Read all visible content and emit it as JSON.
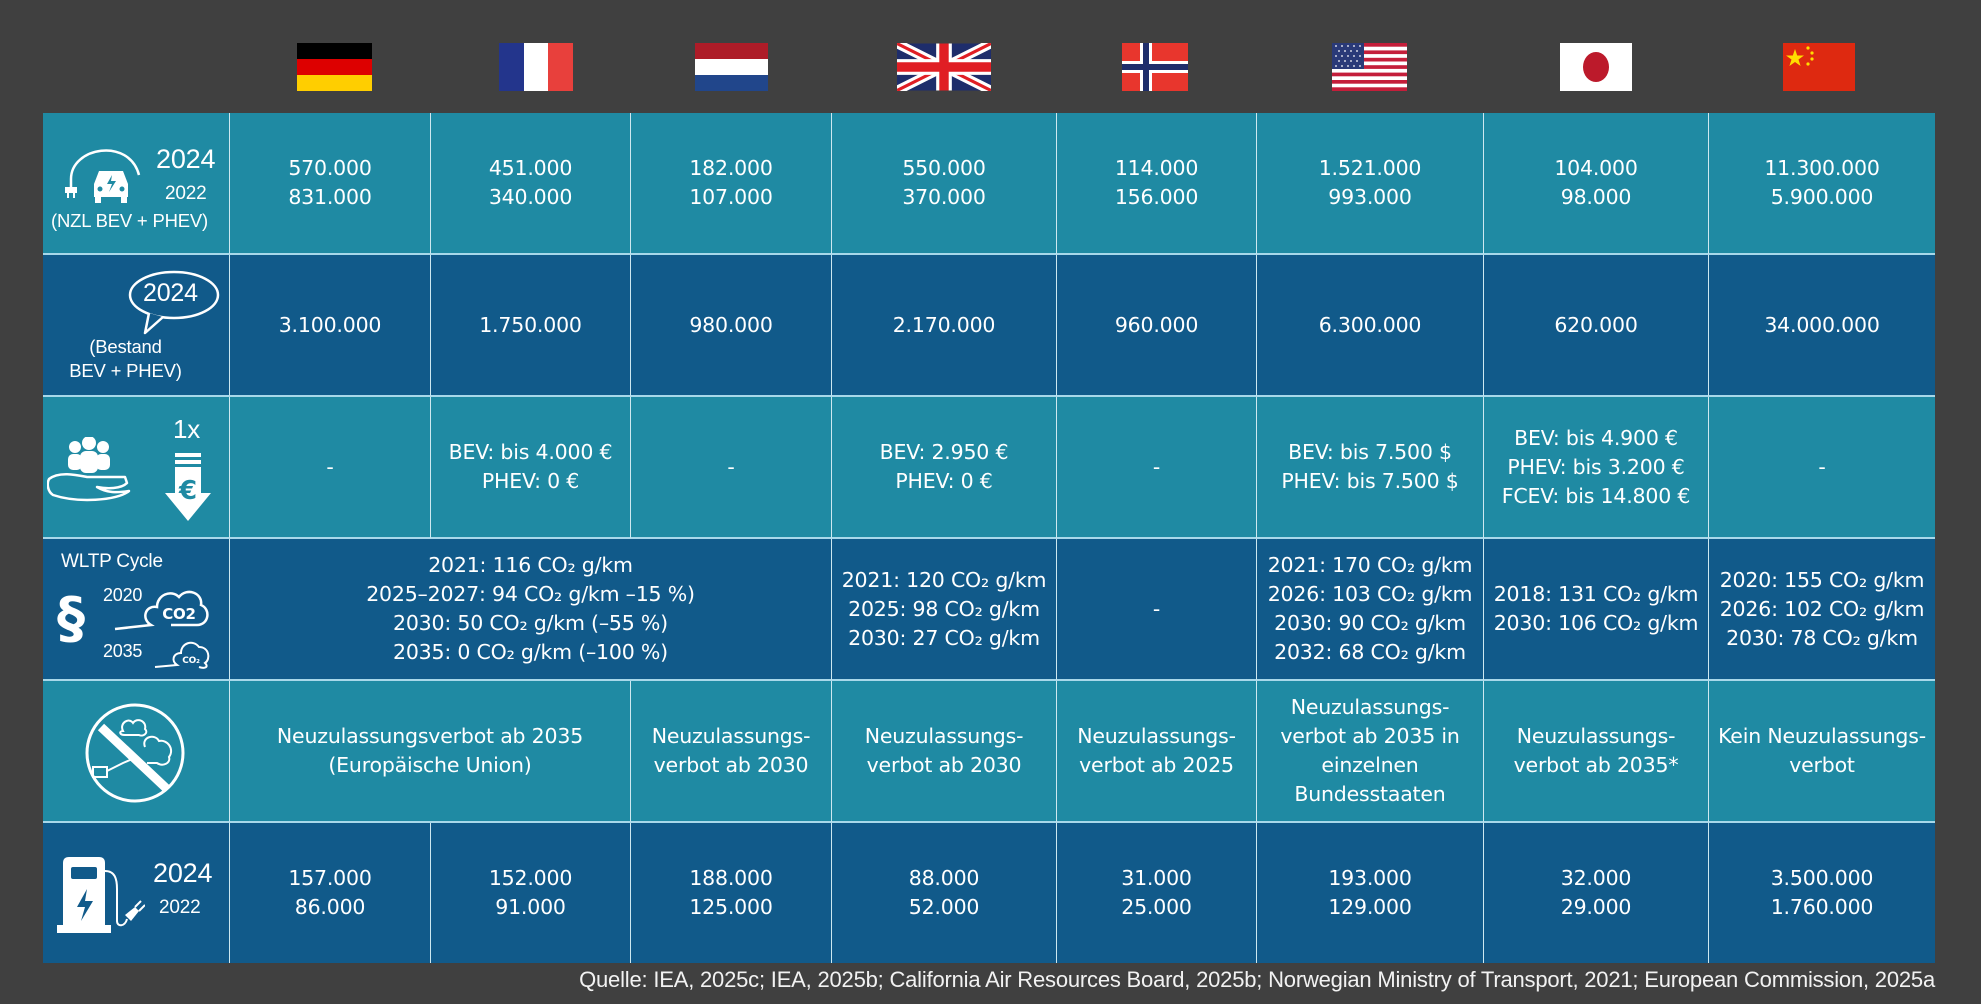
{
  "countries": [
    {
      "name": "Germany",
      "flag": "germany-flag"
    },
    {
      "name": "France",
      "flag": "france-flag"
    },
    {
      "name": "Netherlands",
      "flag": "netherlands-flag"
    },
    {
      "name": "United Kingdom",
      "flag": "uk-flag"
    },
    {
      "name": "Norway",
      "flag": "norway-flag"
    },
    {
      "name": "United States",
      "flag": "usa-flag"
    },
    {
      "name": "Japan",
      "flag": "japan-flag"
    },
    {
      "name": "China",
      "flag": "china-flag"
    }
  ],
  "rows": {
    "new_registrations": {
      "icon": "ev-charging-car-icon",
      "label_year_main": "2024",
      "label_year_sub": "2022",
      "label_text": "(NZL BEV + PHEV)",
      "values": [
        "570.000\n831.000",
        "451.000\n340.000",
        "182.000\n107.000",
        "550.000\n370.000",
        "114.000\n156.000",
        "1.521.000\n993.000",
        "104.000\n98.000",
        "11.300.000\n5.900.000"
      ]
    },
    "stock": {
      "icon": "speech-bubble-icon",
      "label_year": "2024",
      "label_text": "(Bestand\nBEV + PHEV)",
      "values": [
        "3.100.000",
        "1.750.000",
        "980.000",
        "2.170.000",
        "960.000",
        "6.300.000",
        "620.000",
        "34.000.000"
      ]
    },
    "subsidy": {
      "icon": "subsidy-hand-euro-icon",
      "label_text": "1x",
      "values": [
        "-",
        "BEV: bis 4.000 €\nPHEV: 0 €",
        "-",
        "BEV: 2.950 €\nPHEV: 0 €",
        "-",
        "BEV: bis 7.500 $\nPHEV: bis 7.500 $",
        "BEV: bis 4.900 €\nPHEV: bis 3.200 €\nFCEV: bis 14.800 €",
        "-"
      ]
    },
    "co2_limits": {
      "icon": "paragraph-co2-cloud-icon",
      "label_title": "WLTP Cycle",
      "label_year_a": "2020",
      "label_year_b": "2035",
      "label_co2": "CO2",
      "eu_merged": "2021: 116 CO₂ g/km\n2025–2027: 94 CO₂ g/km –15 %)\n2030: 50 CO₂ g/km (–55 %)\n2035: 0 CO₂ g/km (–100 %)",
      "uk": "2021: 120 CO₂ g/km\n2025: 98 CO₂ g/km\n2030: 27 CO₂ g/km",
      "norway": "-",
      "usa": "2021: 170 CO₂ g/km\n2026: 103 CO₂ g/km\n2030: 90 CO₂ g/km\n2032: 68 CO₂ g/km",
      "japan": "2018: 131 CO₂ g/km\n2030: 106 CO₂ g/km",
      "china": "2020: 155 CO₂ g/km\n2026: 102 CO₂ g/km\n2030: 78 CO₂ g/km"
    },
    "ice_ban": {
      "icon": "no-combustion-engine-icon",
      "de_fr_merged": "Neuzulassungsverbot ab 2035\n(Europäische Union)",
      "netherlands": "Neuzulassungs-\nverbot ab 2030",
      "uk": "Neuzulassungs-\nverbot ab 2030",
      "norway": "Neuzulassungs-\nverbot ab 2025",
      "usa": "Neuzulassungs-\nverbot ab 2035 in\neinzelnen\nBundesstaaten",
      "japan": "Neuzulassungs-\nverbot ab 2035*",
      "china": "Kein Neuzulassungs-\nverbot"
    },
    "charging_points": {
      "icon": "charging-station-icon",
      "label_year_main": "2024",
      "label_year_sub": "2022",
      "values": [
        "157.000\n86.000",
        "152.000\n91.000",
        "188.000\n125.000",
        "88.000\n52.000",
        "31.000\n25.000",
        "193.000\n129.000",
        "32.000\n29.000",
        "3.500.000\n1.760.000"
      ]
    }
  },
  "source": "Quelle: IEA, 2025c; IEA, 2025b; California Air Resources Board, 2025b; Norwegian Ministry of Transport, 2021; European Commission, 2025a",
  "colors": {
    "background": "#404040",
    "row_light": "#1f8aa3",
    "row_dark": "#115a8a",
    "grid_line": "#cde8f0"
  }
}
